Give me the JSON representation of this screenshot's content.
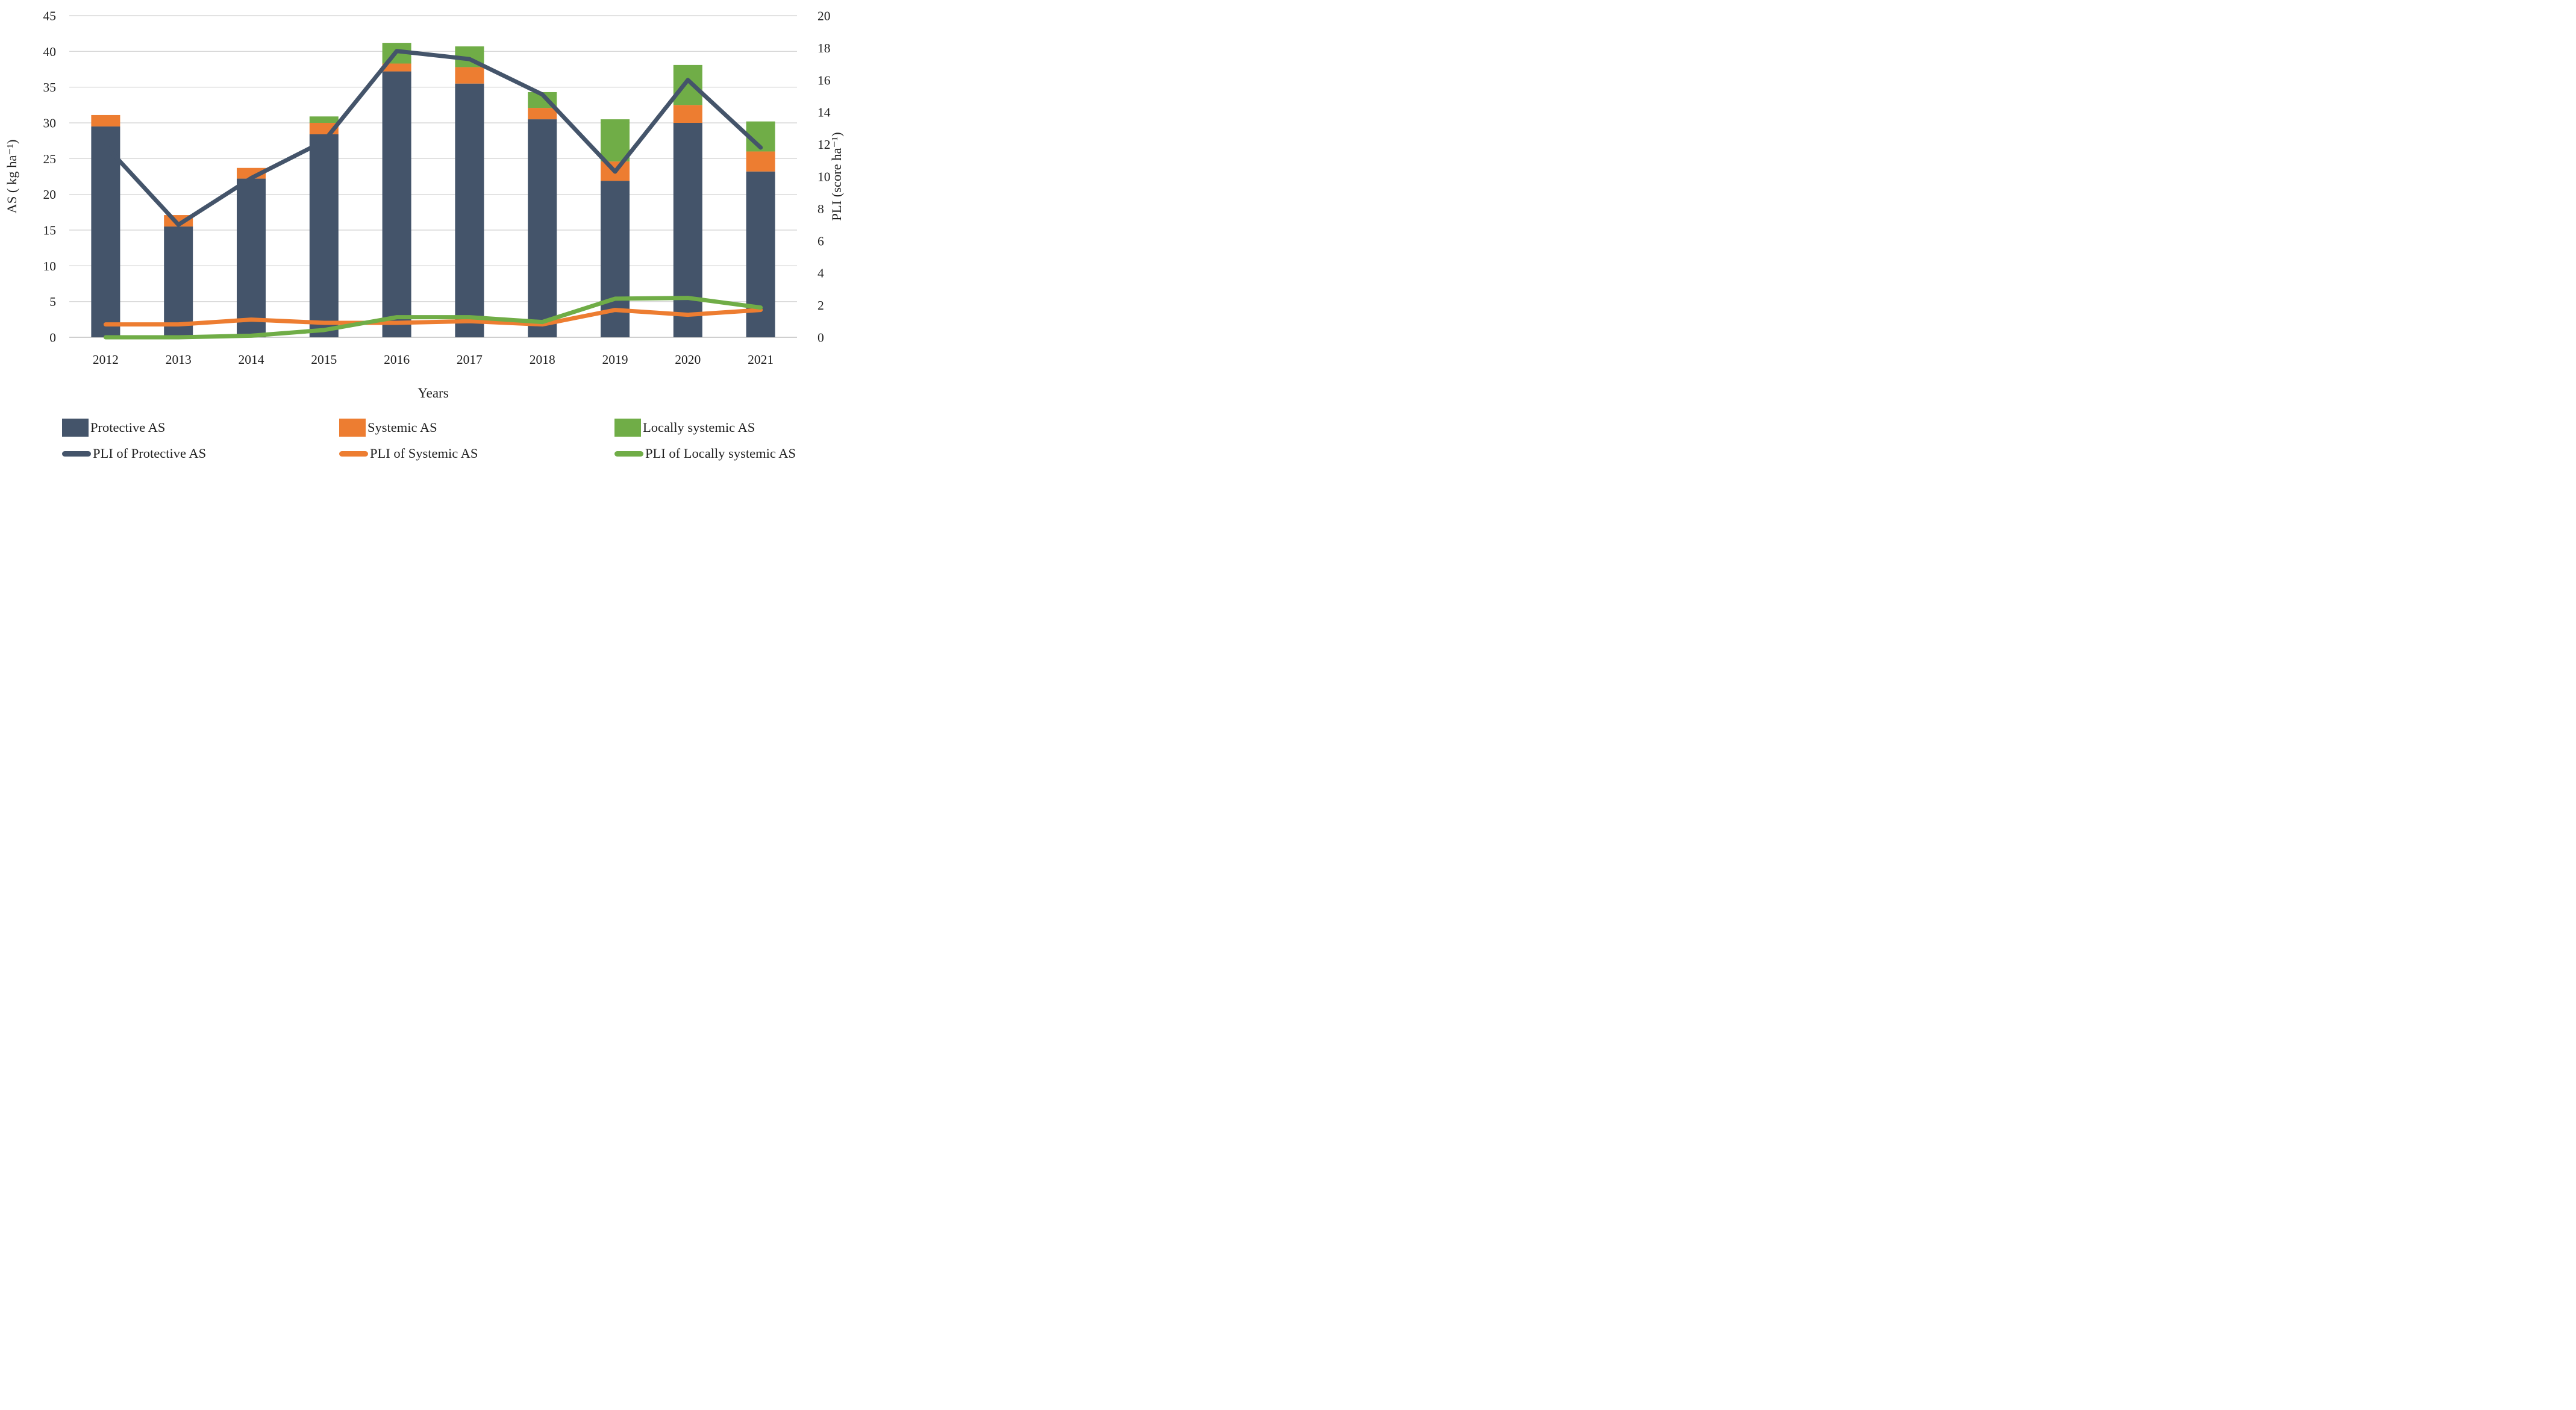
{
  "chart_data": {
    "type": "combo (stacked bar + line, dual axis)",
    "categories": [
      "2012",
      "2013",
      "2014",
      "2015",
      "2016",
      "2017",
      "2018",
      "2019",
      "2020",
      "2021"
    ],
    "bar_series": [
      {
        "name": "Protective AS",
        "type": "bar",
        "stacked": true,
        "axis": "left",
        "color": "#44546A",
        "values": [
          29.5,
          15.5,
          22.2,
          28.4,
          37.2,
          35.5,
          30.5,
          21.9,
          30.0,
          23.2
        ]
      },
      {
        "name": "Systemic AS",
        "type": "bar",
        "stacked": true,
        "axis": "left",
        "color": "#ED7D31",
        "values": [
          1.6,
          1.6,
          1.5,
          1.6,
          1.1,
          2.3,
          1.6,
          2.7,
          2.5,
          2.8
        ]
      },
      {
        "name": "Locally systemic AS",
        "type": "bar",
        "stacked": true,
        "axis": "left",
        "color": "#70AD47",
        "values": [
          0.0,
          0.0,
          0.0,
          0.9,
          2.9,
          2.9,
          2.2,
          5.9,
          5.6,
          4.2
        ]
      }
    ],
    "line_series": [
      {
        "name": "PLI of Protective AS",
        "type": "line",
        "axis": "right",
        "color": "#44546A",
        "values": [
          11.9,
          7.0,
          9.9,
          12.2,
          17.8,
          17.3,
          15.1,
          10.3,
          16.0,
          11.8
        ]
      },
      {
        "name": "PLI of Systemic AS",
        "type": "line",
        "axis": "right",
        "color": "#ED7D31",
        "values": [
          0.8,
          0.8,
          1.1,
          0.9,
          0.9,
          1.0,
          0.8,
          1.7,
          1.4,
          1.7
        ]
      },
      {
        "name": "PLI of Locally systemic AS",
        "type": "line",
        "axis": "right",
        "color": "#70AD47",
        "values": [
          0.0,
          0.0,
          0.1,
          0.45,
          1.25,
          1.25,
          0.95,
          2.4,
          2.45,
          1.85
        ]
      }
    ],
    "left_axis": {
      "label": "AS ( kg ha⁻¹)",
      "min": 0,
      "max": 45,
      "step": 5
    },
    "right_axis": {
      "label": "PLI (score ha⁻¹)",
      "min": 0,
      "max": 20,
      "step": 2
    },
    "xlabel": "Years",
    "grid": true,
    "gridline_color": "#D9D9D9",
    "baseline_color": "#BFBFBF",
    "text_color": "#1f1f1f",
    "background": "#FFFFFF",
    "legend_position": "bottom"
  }
}
